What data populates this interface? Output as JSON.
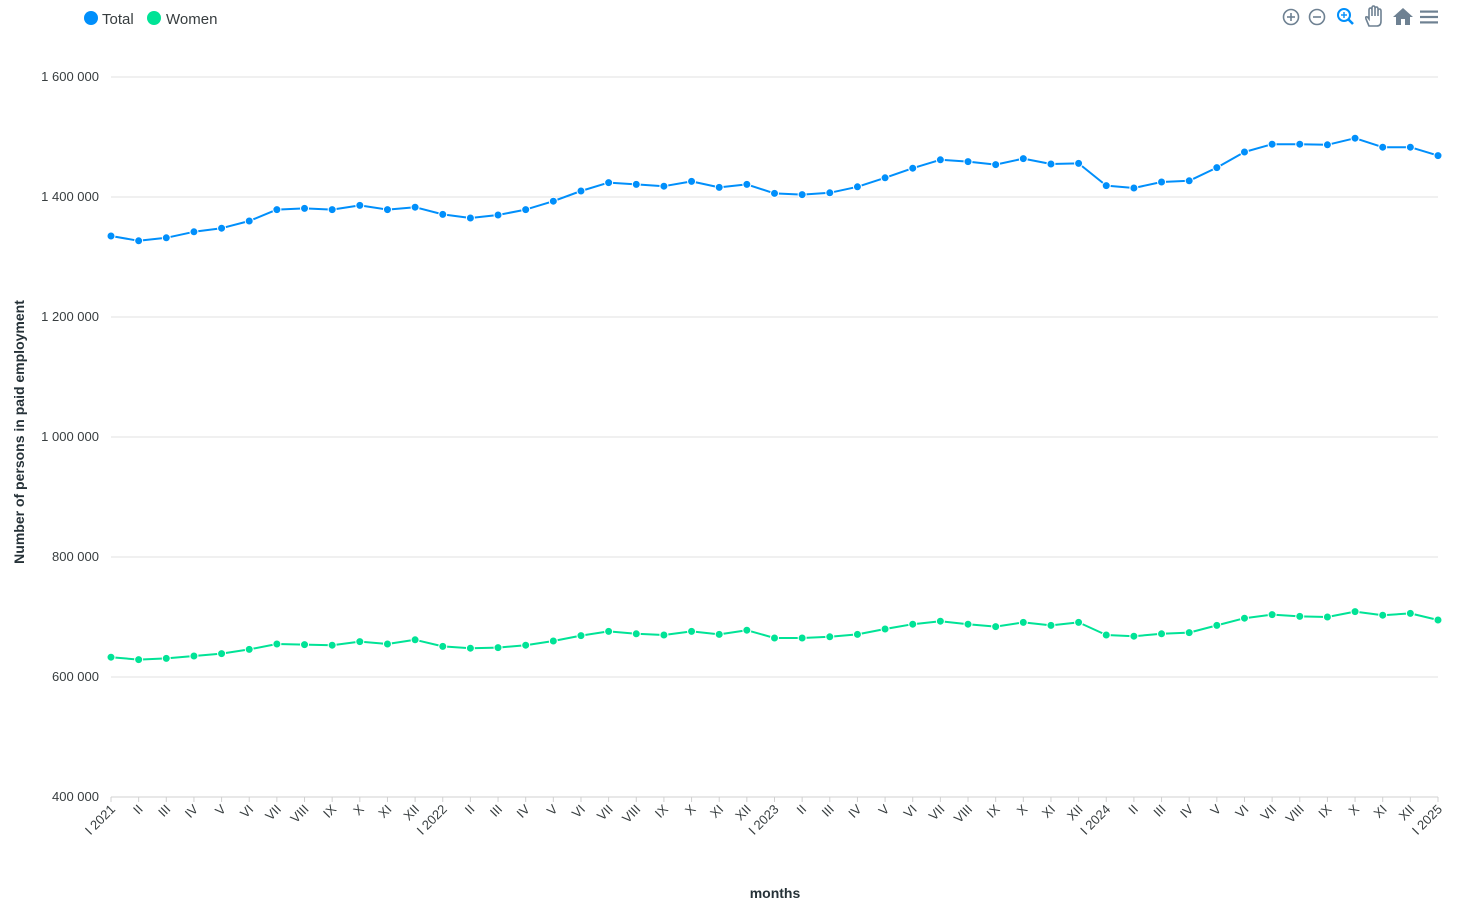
{
  "legend": [
    {
      "label": "Total",
      "color": "#008ffb"
    },
    {
      "label": "Women",
      "color": "#00e396"
    }
  ],
  "toolbar": [
    {
      "name": "zoom-in-icon"
    },
    {
      "name": "zoom-out-icon"
    },
    {
      "name": "zoom-selection-icon",
      "active": true
    },
    {
      "name": "pan-hand-icon"
    },
    {
      "name": "reset-home-icon"
    },
    {
      "name": "menu-icon"
    }
  ],
  "chart_data": {
    "type": "line",
    "title": "",
    "xlabel": "months",
    "ylabel": "Number of persons in paid employment",
    "ylim": [
      400000,
      1600000
    ],
    "yticks": [
      400000,
      600000,
      800000,
      1000000,
      1200000,
      1400000,
      1600000
    ],
    "ytick_labels": [
      "400 000",
      "600 000",
      "800 000",
      "1 000 000",
      "1 200 000",
      "1 400 000",
      "1 600 000"
    ],
    "grid": true,
    "legend_position": "top-left",
    "categories": [
      "I 2021",
      "II",
      "III",
      "IV",
      "V",
      "VI",
      "VII",
      "VIII",
      "IX",
      "X",
      "XI",
      "XII",
      "I 2022",
      "II",
      "III",
      "IV",
      "V",
      "VI",
      "VII",
      "VIII",
      "IX",
      "X",
      "XI",
      "XII",
      "I 2023",
      "II",
      "III",
      "IV",
      "V",
      "VI",
      "VII",
      "VIII",
      "IX",
      "X",
      "XI",
      "XII",
      "I 2024",
      "II",
      "III",
      "IV",
      "V",
      "VI",
      "VII",
      "VIII",
      "IX",
      "X",
      "XI",
      "XII",
      "I 2025"
    ],
    "series": [
      {
        "name": "Total",
        "color": "#008ffb",
        "values": [
          1335000,
          1327000,
          1332000,
          1342000,
          1348000,
          1360000,
          1379000,
          1381000,
          1379000,
          1386000,
          1379000,
          1383000,
          1371000,
          1365000,
          1370000,
          1379000,
          1393000,
          1410000,
          1424000,
          1421000,
          1418000,
          1426000,
          1416000,
          1421000,
          1406000,
          1404000,
          1407000,
          1417000,
          1432000,
          1448000,
          1462000,
          1459000,
          1454000,
          1464000,
          1455000,
          1456000,
          1419000,
          1415000,
          1425000,
          1427000,
          1449000,
          1475000,
          1488000,
          1488000,
          1487000,
          1498000,
          1483000,
          1483000,
          1469000
        ]
      },
      {
        "name": "Women",
        "color": "#00e396",
        "values": [
          633000,
          629000,
          631000,
          635000,
          639000,
          646000,
          655000,
          654000,
          653000,
          659000,
          655000,
          662000,
          651000,
          648000,
          649000,
          653000,
          660000,
          669000,
          676000,
          672000,
          670000,
          676000,
          671000,
          678000,
          665000,
          665000,
          667000,
          671000,
          680000,
          688000,
          693000,
          688000,
          684000,
          691000,
          686000,
          691000,
          670000,
          668000,
          672000,
          674000,
          686000,
          698000,
          704000,
          701000,
          700000,
          709000,
          703000,
          706000,
          695000
        ]
      }
    ]
  }
}
